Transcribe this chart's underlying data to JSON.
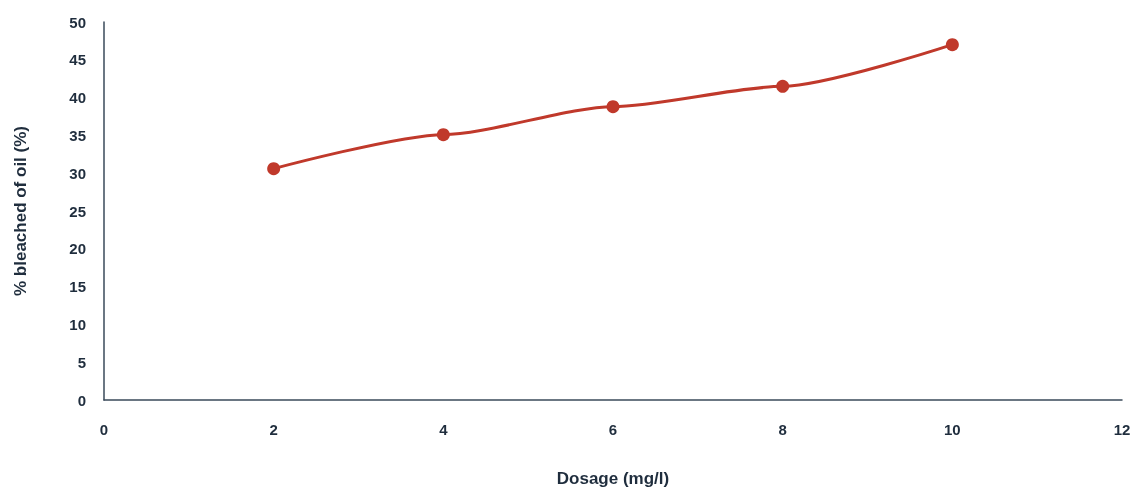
{
  "chart_data": {
    "type": "line",
    "xlabel": "Dosage (mg/l)",
    "ylabel": "% bleached of oil (%)",
    "x": [
      2,
      4,
      6,
      8,
      10
    ],
    "series": [
      {
        "color": "#c0392b",
        "values": [
          30.6,
          35.1,
          38.8,
          41.5,
          47.0
        ]
      }
    ],
    "xlim": [
      0,
      12
    ],
    "xticks": [
      0,
      2,
      4,
      6,
      8,
      10,
      12
    ],
    "ylim": [
      0,
      50
    ],
    "yticks": [
      0,
      5,
      10,
      15,
      20,
      25,
      30,
      35,
      40,
      45,
      50
    ],
    "grid": false,
    "marker": "circle",
    "line_style": "solid"
  }
}
